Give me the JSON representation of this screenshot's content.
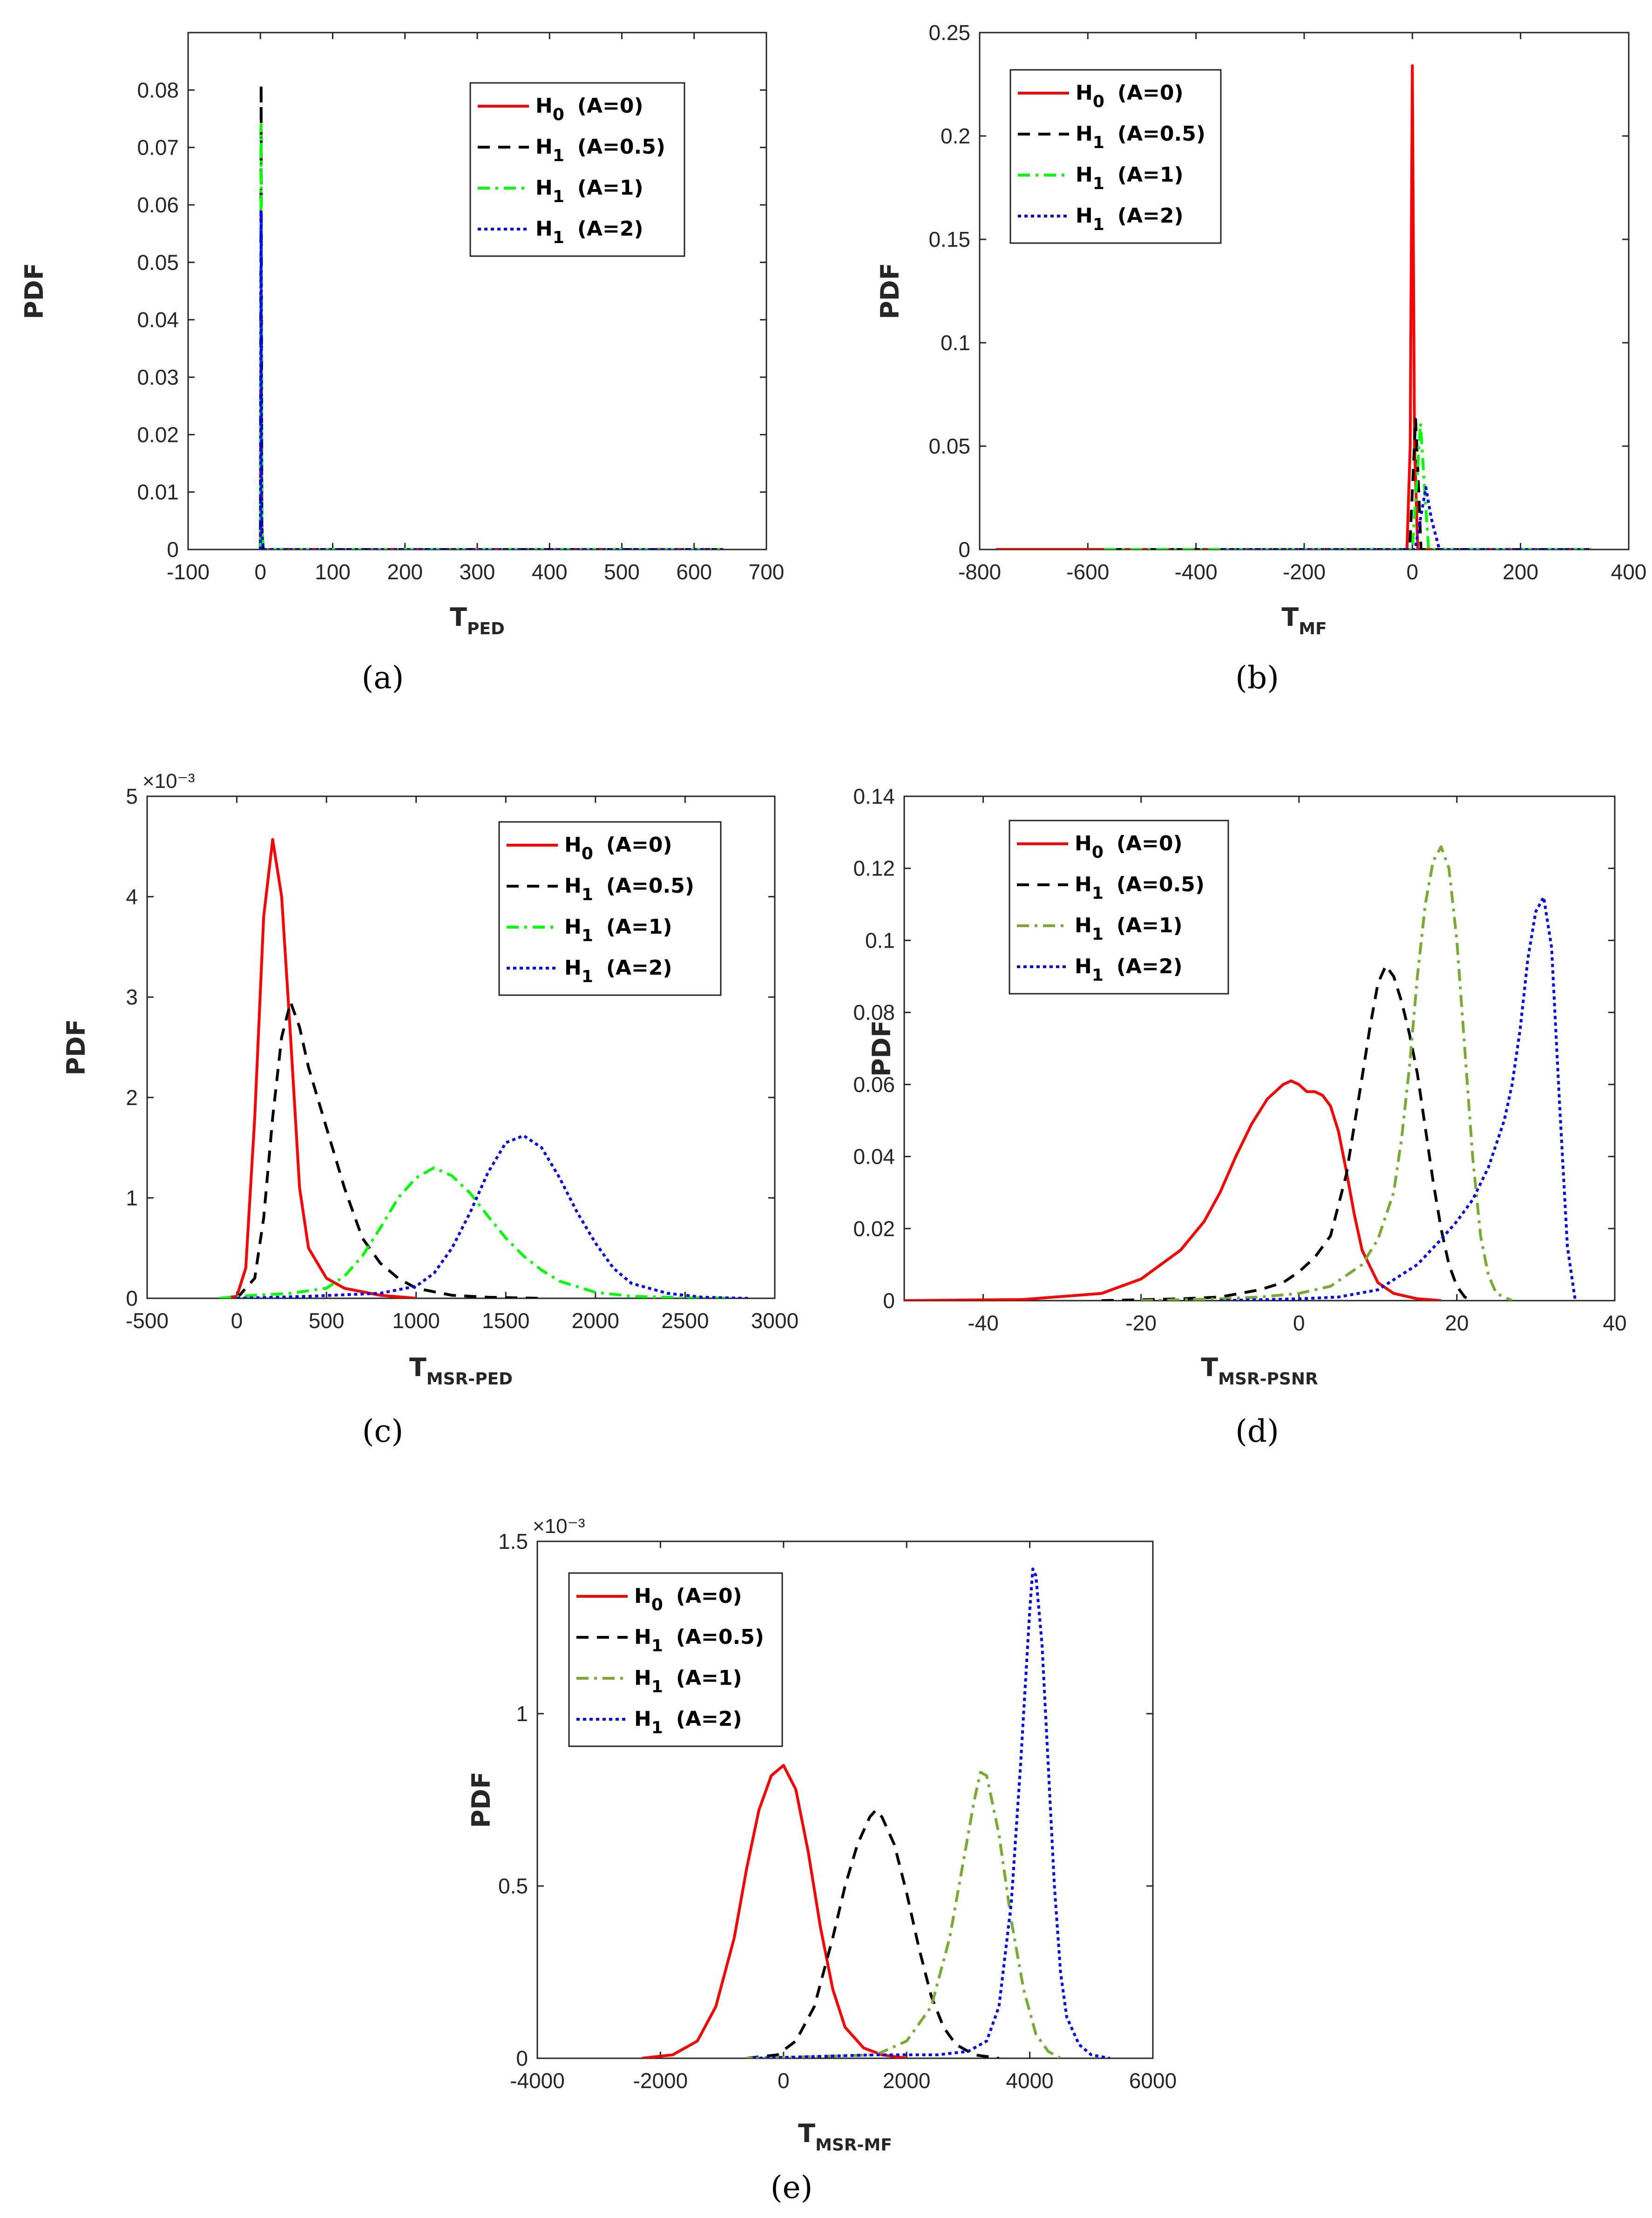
{
  "chart_data": [
    {
      "panel": "a",
      "type": "line",
      "caption": "(a)",
      "xlabel_main": "T",
      "xlabel_sub": "PED",
      "ylabel": "PDF",
      "xlim": [
        -100,
        700
      ],
      "ylim": [
        0,
        0.09
      ],
      "xticks": [
        -100,
        0,
        100,
        200,
        300,
        400,
        500,
        600,
        700
      ],
      "yticks": [
        0,
        0.01,
        0.02,
        0.03,
        0.04,
        0.05,
        0.06,
        0.07,
        0.08
      ],
      "ytick_labels": [
        "0",
        "0.01",
        "0.02",
        "0.03",
        "0.04",
        "0.05",
        "0.06",
        "0.07",
        "0.08"
      ],
      "exponent": "",
      "legend": {
        "position": "top-right"
      },
      "series": [
        {
          "main": "H",
          "sub": "0",
          "param": "(A=0)",
          "color": "#ff0000",
          "dash": "solid",
          "x": [
            0,
            1,
            2,
            4,
            640
          ],
          "y": [
            0,
            0.045,
            0.002,
            0,
            0
          ]
        },
        {
          "main": "H",
          "sub": "1",
          "param": "(A=0.5)",
          "color": "#000000",
          "dash": "dashed",
          "x": [
            0,
            1,
            2,
            4,
            640
          ],
          "y": [
            0,
            0.081,
            0.004,
            0,
            0
          ]
        },
        {
          "main": "H",
          "sub": "1",
          "param": "(A=1)",
          "color": "#00ff00",
          "dash": "dashdot",
          "x": [
            0,
            1,
            2,
            4,
            640
          ],
          "y": [
            0,
            0.074,
            0.004,
            0,
            0
          ]
        },
        {
          "main": "H",
          "sub": "1",
          "param": "(A=2)",
          "color": "#0000ff",
          "dash": "dotted",
          "x": [
            0,
            1,
            2,
            4,
            640
          ],
          "y": [
            0,
            0.059,
            0.003,
            0,
            0
          ]
        }
      ]
    },
    {
      "panel": "b",
      "type": "line",
      "caption": "(b)",
      "xlabel_main": "T",
      "xlabel_sub": "MF",
      "ylabel": "PDF",
      "xlim": [
        -800,
        400
      ],
      "ylim": [
        0,
        0.25
      ],
      "xticks": [
        -800,
        -600,
        -400,
        -200,
        0,
        200,
        400
      ],
      "yticks": [
        0,
        0.05,
        0.1,
        0.15,
        0.2,
        0.25
      ],
      "ytick_labels": [
        "0",
        "0.05",
        "0.1",
        "0.15",
        "0.2",
        "0.25"
      ],
      "exponent": "",
      "legend": {
        "position": "top-left"
      },
      "series": [
        {
          "main": "H",
          "sub": "0",
          "param": "(A=0)",
          "color": "#ff0000",
          "dash": "solid",
          "x": [
            -770,
            -10,
            -4,
            0,
            4,
            10,
            330
          ],
          "y": [
            0,
            0,
            0.05,
            0.234,
            0.05,
            0,
            0
          ]
        },
        {
          "main": "H",
          "sub": "1",
          "param": "(A=0.5)",
          "color": "#000000",
          "dash": "dashed",
          "x": [
            -560,
            -5,
            2,
            6,
            10,
            16,
            330
          ],
          "y": [
            0,
            0,
            0.04,
            0.063,
            0.04,
            0,
            0
          ]
        },
        {
          "main": "H",
          "sub": "1",
          "param": "(A=1)",
          "color": "#00ff00",
          "dash": "dashdot",
          "x": [
            -570,
            0,
            10,
            15,
            20,
            30,
            330
          ],
          "y": [
            0,
            0,
            0.04,
            0.061,
            0.04,
            0,
            0
          ]
        },
        {
          "main": "H",
          "sub": "1",
          "param": "(A=2)",
          "color": "#0000ff",
          "dash": "dotted",
          "x": [
            -350,
            5,
            15,
            25,
            35,
            50,
            330
          ],
          "y": [
            0,
            0,
            0.015,
            0.03,
            0.015,
            0,
            0
          ]
        }
      ]
    },
    {
      "panel": "c",
      "type": "line",
      "caption": "(c)",
      "xlabel_main": "T",
      "xlabel_sub": "MSR-PED",
      "ylabel": "PDF",
      "xlim": [
        -500,
        3000
      ],
      "ylim": [
        0,
        5
      ],
      "xticks": [
        -500,
        0,
        500,
        1000,
        1500,
        2000,
        2500,
        3000
      ],
      "yticks": [
        0,
        1,
        2,
        3,
        4,
        5
      ],
      "ytick_labels": [
        "0",
        "1",
        "2",
        "3",
        "4",
        "5"
      ],
      "exponent": "×10⁻³",
      "legend": {
        "position": "top-right"
      },
      "series": [
        {
          "main": "H",
          "sub": "0",
          "param": "(A=0)",
          "color": "#ff0000",
          "dash": "solid",
          "x": [
            -80,
            0,
            50,
            100,
            150,
            200,
            250,
            300,
            350,
            400,
            500,
            600,
            800,
            1000
          ],
          "y": [
            0,
            0.02,
            0.3,
            1.8,
            3.8,
            4.57,
            4.0,
            2.6,
            1.1,
            0.5,
            0.2,
            0.1,
            0.03,
            0
          ]
        },
        {
          "main": "H",
          "sub": "1",
          "param": "(A=0.5)",
          "color": "#000000",
          "dash": "dashed",
          "x": [
            0,
            100,
            150,
            200,
            250,
            300,
            350,
            400,
            500,
            600,
            700,
            800,
            900,
            1000,
            1200,
            1400,
            1700
          ],
          "y": [
            0,
            0.2,
            0.8,
            1.8,
            2.6,
            2.95,
            2.7,
            2.3,
            1.7,
            1.1,
            0.6,
            0.35,
            0.2,
            0.1,
            0.03,
            0.01,
            0
          ]
        },
        {
          "main": "H",
          "sub": "1",
          "param": "(A=1)",
          "color": "#00ff00",
          "dash": "dashdot",
          "x": [
            -100,
            100,
            300,
            500,
            600,
            700,
            800,
            900,
            1000,
            1100,
            1200,
            1300,
            1400,
            1500,
            1600,
            1700,
            1800,
            2000,
            2200,
            2500,
            2800
          ],
          "y": [
            0,
            0.03,
            0.05,
            0.1,
            0.22,
            0.42,
            0.7,
            1.0,
            1.2,
            1.3,
            1.22,
            1.05,
            0.82,
            0.6,
            0.42,
            0.28,
            0.17,
            0.06,
            0.02,
            0.005,
            0
          ]
        },
        {
          "main": "H",
          "sub": "1",
          "param": "(A=2)",
          "color": "#0000ff",
          "dash": "dotted",
          "x": [
            0,
            400,
            800,
            1000,
            1100,
            1200,
            1300,
            1400,
            1500,
            1600,
            1700,
            1800,
            1900,
            2000,
            2100,
            2200,
            2400,
            2600,
            2850
          ],
          "y": [
            0,
            0.02,
            0.05,
            0.12,
            0.25,
            0.5,
            0.85,
            1.25,
            1.55,
            1.62,
            1.5,
            1.2,
            0.85,
            0.55,
            0.3,
            0.15,
            0.05,
            0.01,
            0
          ]
        }
      ]
    },
    {
      "panel": "d",
      "type": "line",
      "caption": "(d)",
      "xlabel_main": "T",
      "xlabel_sub": "MSR-PSNR",
      "ylabel": "PDF",
      "xlim": [
        -50,
        40
      ],
      "ylim": [
        0,
        0.14
      ],
      "xticks": [
        -40,
        -20,
        0,
        20,
        40
      ],
      "yticks": [
        0,
        0.02,
        0.04,
        0.06,
        0.08,
        0.1,
        0.12,
        0.14
      ],
      "ytick_labels": [
        "0",
        "0.02",
        "0.04",
        "0.06",
        "0.08",
        "0.1",
        "0.12",
        "0.14"
      ],
      "exponent": "",
      "legend": {
        "position": "top-left"
      },
      "series": [
        {
          "main": "H",
          "sub": "0",
          "param": "(A=0)",
          "color": "#ff0000",
          "dash": "solid",
          "x": [
            -50,
            -35,
            -25,
            -20,
            -15,
            -12,
            -10,
            -8,
            -6,
            -4,
            -2,
            -1,
            0,
            1,
            2,
            3,
            4,
            5,
            6,
            7,
            8,
            10,
            12,
            15,
            18
          ],
          "y": [
            0,
            0.0003,
            0.002,
            0.006,
            0.014,
            0.022,
            0.03,
            0.04,
            0.049,
            0.056,
            0.06,
            0.061,
            0.06,
            0.058,
            0.058,
            0.057,
            0.054,
            0.047,
            0.036,
            0.024,
            0.014,
            0.005,
            0.002,
            0.0005,
            0
          ]
        },
        {
          "main": "H",
          "sub": "1",
          "param": "(A=0.5)",
          "color": "#000000",
          "dash": "dashed",
          "x": [
            -25,
            -15,
            -10,
            -5,
            -2,
            0,
            2,
            4,
            6,
            8,
            9,
            10,
            11,
            12,
            13,
            14,
            15,
            16,
            17,
            18,
            19,
            20,
            21,
            22
          ],
          "y": [
            0,
            0.0005,
            0.001,
            0.003,
            0.005,
            0.008,
            0.012,
            0.018,
            0.035,
            0.062,
            0.076,
            0.088,
            0.093,
            0.09,
            0.083,
            0.074,
            0.063,
            0.048,
            0.033,
            0.02,
            0.01,
            0.004,
            0.001,
            0
          ]
        },
        {
          "main": "H",
          "sub": "1",
          "param": "(A=1)",
          "color": "#77ac30",
          "dash": "dashdot",
          "x": [
            -20,
            -10,
            -5,
            0,
            4,
            8,
            10,
            12,
            13,
            14,
            15,
            16,
            17,
            18,
            19,
            20,
            21,
            22,
            23,
            24,
            25,
            27
          ],
          "y": [
            0,
            0.0005,
            0.001,
            0.002,
            0.004,
            0.01,
            0.017,
            0.03,
            0.045,
            0.065,
            0.09,
            0.11,
            0.122,
            0.126,
            0.12,
            0.1,
            0.07,
            0.04,
            0.018,
            0.007,
            0.002,
            0
          ]
        },
        {
          "main": "H",
          "sub": "1",
          "param": "(A=2)",
          "color": "#0000ff",
          "dash": "dotted",
          "x": [
            -10,
            0,
            5,
            10,
            15,
            18,
            20,
            22,
            24,
            26,
            27,
            28,
            29,
            30,
            31,
            32,
            33,
            34,
            35
          ],
          "y": [
            0,
            0.0005,
            0.001,
            0.003,
            0.01,
            0.017,
            0.022,
            0.028,
            0.037,
            0.05,
            0.06,
            0.075,
            0.095,
            0.108,
            0.112,
            0.098,
            0.055,
            0.015,
            0
          ]
        }
      ]
    },
    {
      "panel": "e",
      "type": "line",
      "caption": "(e)",
      "xlabel_main": "T",
      "xlabel_sub": "MSR-MF",
      "ylabel": "PDF",
      "xlim": [
        -4000,
        6000
      ],
      "ylim": [
        0,
        1.5
      ],
      "xticks": [
        -4000,
        -2000,
        0,
        2000,
        4000,
        6000
      ],
      "yticks": [
        0,
        0.5,
        1,
        1.5
      ],
      "ytick_labels": [
        "0",
        "0.5",
        "1",
        "1.5"
      ],
      "exponent": "×10⁻³",
      "legend": {
        "position": "top-left"
      },
      "series": [
        {
          "main": "H",
          "sub": "0",
          "param": "(A=0)",
          "color": "#ff0000",
          "dash": "solid",
          "x": [
            -2300,
            -1800,
            -1400,
            -1100,
            -800,
            -600,
            -400,
            -200,
            0,
            200,
            400,
            600,
            800,
            1000,
            1300,
            1600,
            2000
          ],
          "y": [
            0,
            0.01,
            0.05,
            0.15,
            0.35,
            0.55,
            0.72,
            0.82,
            0.85,
            0.78,
            0.6,
            0.38,
            0.2,
            0.09,
            0.03,
            0.01,
            0
          ]
        },
        {
          "main": "H",
          "sub": "1",
          "param": "(A=0.5)",
          "color": "#000000",
          "dash": "dashed",
          "x": [
            -600,
            -100,
            200,
            500,
            800,
            1000,
            1200,
            1400,
            1500,
            1600,
            1800,
            2000,
            2200,
            2400,
            2600,
            2800,
            3100,
            3500
          ],
          "y": [
            0,
            0.01,
            0.05,
            0.15,
            0.35,
            0.5,
            0.62,
            0.7,
            0.72,
            0.7,
            0.62,
            0.48,
            0.32,
            0.18,
            0.09,
            0.04,
            0.01,
            0
          ]
        },
        {
          "main": "H",
          "sub": "1",
          "param": "(A=1)",
          "color": "#77ac30",
          "dash": "dashdot",
          "x": [
            -600,
            500,
            1500,
            2000,
            2400,
            2700,
            2900,
            3100,
            3200,
            3300,
            3500,
            3700,
            3900,
            4100,
            4300,
            4500
          ],
          "y": [
            0,
            0.005,
            0.01,
            0.05,
            0.15,
            0.35,
            0.55,
            0.75,
            0.83,
            0.82,
            0.65,
            0.4,
            0.2,
            0.07,
            0.02,
            0
          ]
        },
        {
          "main": "H",
          "sub": "1",
          "param": "(A=2)",
          "color": "#0000ff",
          "dash": "dotted",
          "x": [
            -500,
            500,
            1500,
            2500,
            3000,
            3300,
            3500,
            3700,
            3850,
            4000,
            4050,
            4100,
            4200,
            4300,
            4400,
            4500,
            4600,
            4800,
            5000,
            5300
          ],
          "y": [
            0,
            0.005,
            0.01,
            0.01,
            0.02,
            0.05,
            0.15,
            0.45,
            0.85,
            1.3,
            1.42,
            1.4,
            1.2,
            0.85,
            0.5,
            0.25,
            0.12,
            0.04,
            0.01,
            0
          ]
        }
      ]
    }
  ]
}
